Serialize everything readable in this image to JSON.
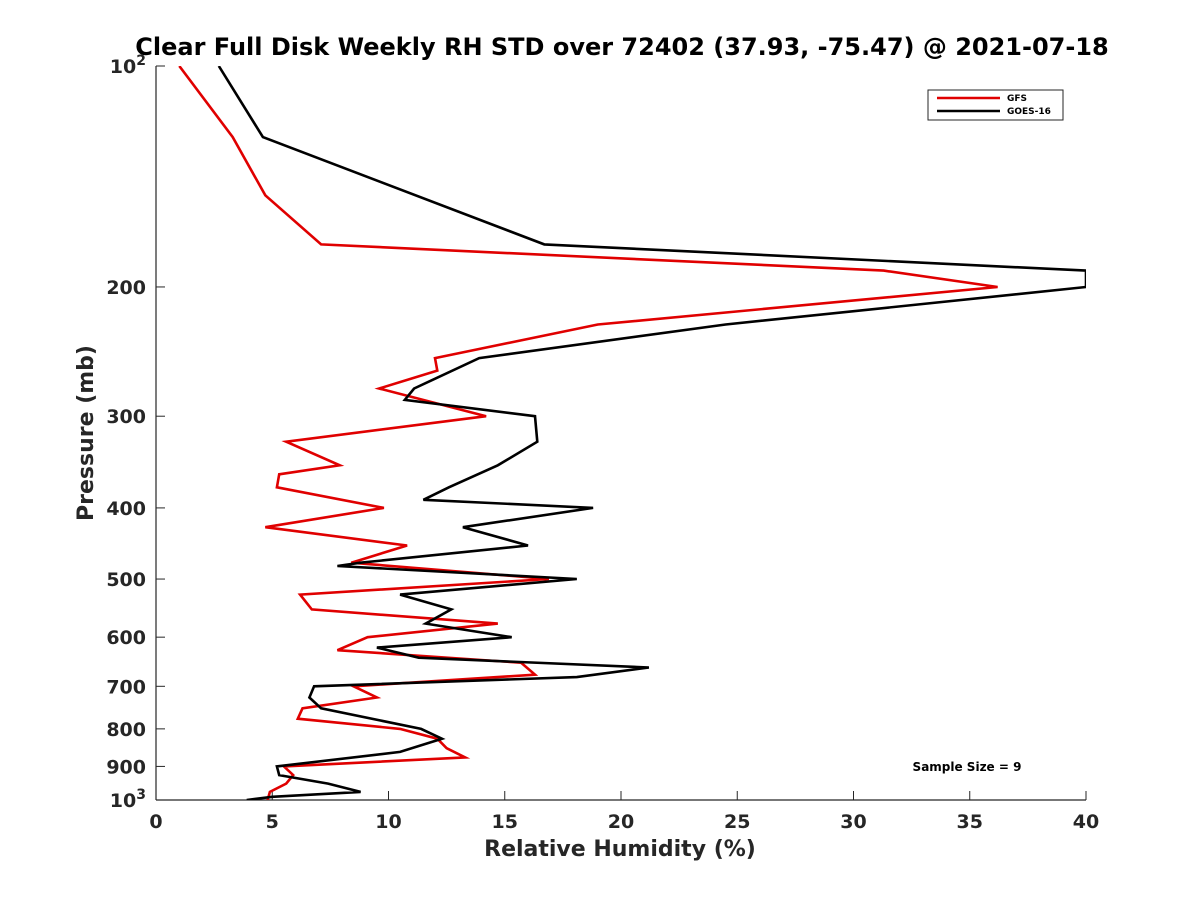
{
  "chart_data": {
    "type": "line",
    "title": "Clear Full Disk Weekly RH STD over 72402 (37.93, -75.47) @ 2021-07-18",
    "xlabel": "Relative Humidity (%)",
    "ylabel": "Pressure (mb)",
    "xlim": [
      0,
      40
    ],
    "ylim": [
      100,
      1000
    ],
    "yscale": "log",
    "y_reversed": true,
    "grid": false,
    "x_ticks": [
      0,
      5,
      10,
      15,
      20,
      25,
      30,
      35,
      40
    ],
    "x_tick_labels": [
      "0",
      "5",
      "10",
      "15",
      "20",
      "25",
      "30",
      "35",
      "40"
    ],
    "y_ticks": [
      100,
      200,
      300,
      400,
      500,
      600,
      700,
      800,
      900,
      1000
    ],
    "y_tick_labels": [
      {
        "base": "10",
        "exp": "2"
      },
      {
        "base": "200",
        "exp": ""
      },
      {
        "base": "300",
        "exp": ""
      },
      {
        "base": "400",
        "exp": ""
      },
      {
        "base": "500",
        "exp": ""
      },
      {
        "base": "600",
        "exp": ""
      },
      {
        "base": "700",
        "exp": ""
      },
      {
        "base": "800",
        "exp": ""
      },
      {
        "base": "900",
        "exp": ""
      },
      {
        "base": "10",
        "exp": "3"
      }
    ],
    "legend_position": "top-right",
    "annotation": "Sample Size = 9",
    "series": [
      {
        "name": "GFS",
        "color": "#e00000",
        "points": [
          [
            1.0,
            100
          ],
          [
            3.3,
            125
          ],
          [
            4.7,
            150
          ],
          [
            7.1,
            175
          ],
          [
            31.3,
            190
          ],
          [
            36.2,
            200
          ],
          [
            19.0,
            225
          ],
          [
            12.0,
            250
          ],
          [
            12.1,
            260
          ],
          [
            9.6,
            275
          ],
          [
            14.2,
            300
          ],
          [
            5.6,
            325
          ],
          [
            7.9,
            350
          ],
          [
            5.3,
            360
          ],
          [
            5.2,
            375
          ],
          [
            9.8,
            400
          ],
          [
            4.7,
            425
          ],
          [
            10.8,
            450
          ],
          [
            8.4,
            475
          ],
          [
            16.9,
            500
          ],
          [
            6.2,
            525
          ],
          [
            6.7,
            550
          ],
          [
            14.7,
            575
          ],
          [
            9.1,
            600
          ],
          [
            7.8,
            625
          ],
          [
            15.7,
            650
          ],
          [
            16.3,
            675
          ],
          [
            8.5,
            700
          ],
          [
            9.5,
            725
          ],
          [
            6.3,
            750
          ],
          [
            6.1,
            775
          ],
          [
            10.5,
            800
          ],
          [
            12.1,
            825
          ],
          [
            12.5,
            850
          ],
          [
            13.3,
            875
          ],
          [
            5.5,
            900
          ],
          [
            5.9,
            925
          ],
          [
            5.6,
            950
          ],
          [
            4.9,
            975
          ],
          [
            4.8,
            1000
          ]
        ]
      },
      {
        "name": "GOES-16",
        "color": "#000000",
        "points": [
          [
            2.7,
            100
          ],
          [
            4.6,
            125
          ],
          [
            16.7,
            175
          ],
          [
            40.0,
            190
          ],
          [
            40.0,
            200
          ],
          [
            24.5,
            225
          ],
          [
            13.9,
            250
          ],
          [
            11.1,
            275
          ],
          [
            10.7,
            285
          ],
          [
            16.3,
            300
          ],
          [
            16.4,
            325
          ],
          [
            14.7,
            350
          ],
          [
            12.6,
            375
          ],
          [
            11.5,
            390
          ],
          [
            18.8,
            400
          ],
          [
            13.2,
            425
          ],
          [
            16.0,
            450
          ],
          [
            8.8,
            475
          ],
          [
            7.8,
            480
          ],
          [
            18.1,
            500
          ],
          [
            10.5,
            525
          ],
          [
            12.7,
            550
          ],
          [
            11.6,
            575
          ],
          [
            15.3,
            600
          ],
          [
            9.5,
            620
          ],
          [
            11.3,
            640
          ],
          [
            21.2,
            660
          ],
          [
            18.1,
            680
          ],
          [
            6.8,
            700
          ],
          [
            6.6,
            725
          ],
          [
            7.1,
            750
          ],
          [
            11.4,
            800
          ],
          [
            12.3,
            825
          ],
          [
            10.5,
            860
          ],
          [
            5.2,
            900
          ],
          [
            5.3,
            925
          ],
          [
            7.4,
            950
          ],
          [
            8.8,
            975
          ],
          [
            5.0,
            990
          ],
          [
            3.9,
            1000
          ]
        ]
      }
    ]
  }
}
